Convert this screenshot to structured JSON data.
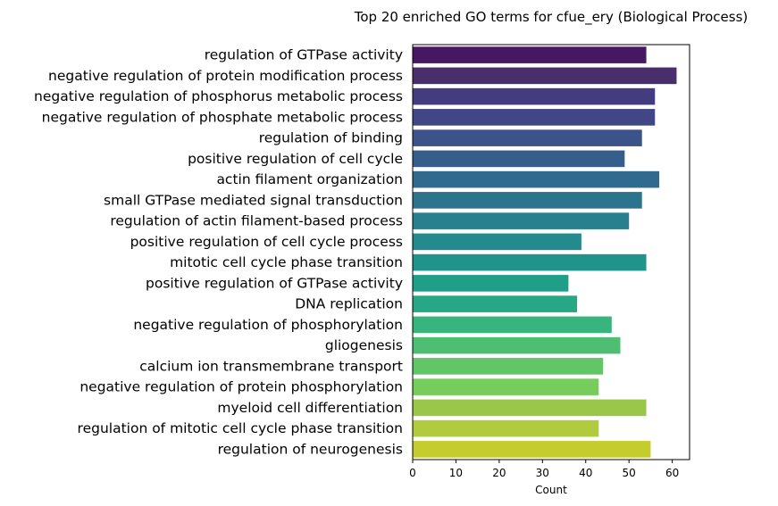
{
  "chart_data": {
    "type": "bar",
    "orientation": "horizontal",
    "title": "Top 20 enriched GO terms for cfue_ery (Biological Process)",
    "xlabel": "Count",
    "ylabel": "",
    "xlim": [
      0,
      64
    ],
    "xticks": [
      0,
      10,
      20,
      30,
      40,
      50,
      60
    ],
    "grid": false,
    "legend": "none",
    "colormap": "viridis",
    "categories": [
      "regulation of GTPase activity",
      "negative regulation of protein modification process",
      "negative regulation of phosphorus metabolic process",
      "negative regulation of phosphate metabolic process",
      "regulation of binding",
      "positive regulation of cell cycle",
      "actin filament organization",
      "small GTPase mediated signal transduction",
      "regulation of actin filament-based process",
      "positive regulation of cell cycle process",
      "mitotic cell cycle phase transition",
      "positive regulation of GTPase activity",
      "DNA replication",
      "negative regulation of phosphorylation",
      "gliogenesis",
      "calcium ion transmembrane transport",
      "negative regulation of protein phosphorylation",
      "myeloid cell differentiation",
      "regulation of mitotic cell cycle phase transition",
      "regulation of neurogenesis"
    ],
    "values": [
      54,
      61,
      56,
      56,
      53,
      49,
      57,
      53,
      50,
      39,
      54,
      36,
      38,
      46,
      48,
      44,
      43,
      54,
      43,
      55
    ],
    "colors": [
      "#471763",
      "#482e6b",
      "#433c7f",
      "#414687",
      "#3b528b",
      "#355e8d",
      "#306a8e",
      "#2c748e",
      "#28808e",
      "#238a8d",
      "#20948b",
      "#1f9f88",
      "#26a884",
      "#37b57c",
      "#4dbe72",
      "#62c566",
      "#77cd5c",
      "#9ac749",
      "#b1cb3f",
      "#c4cd2d"
    ]
  }
}
